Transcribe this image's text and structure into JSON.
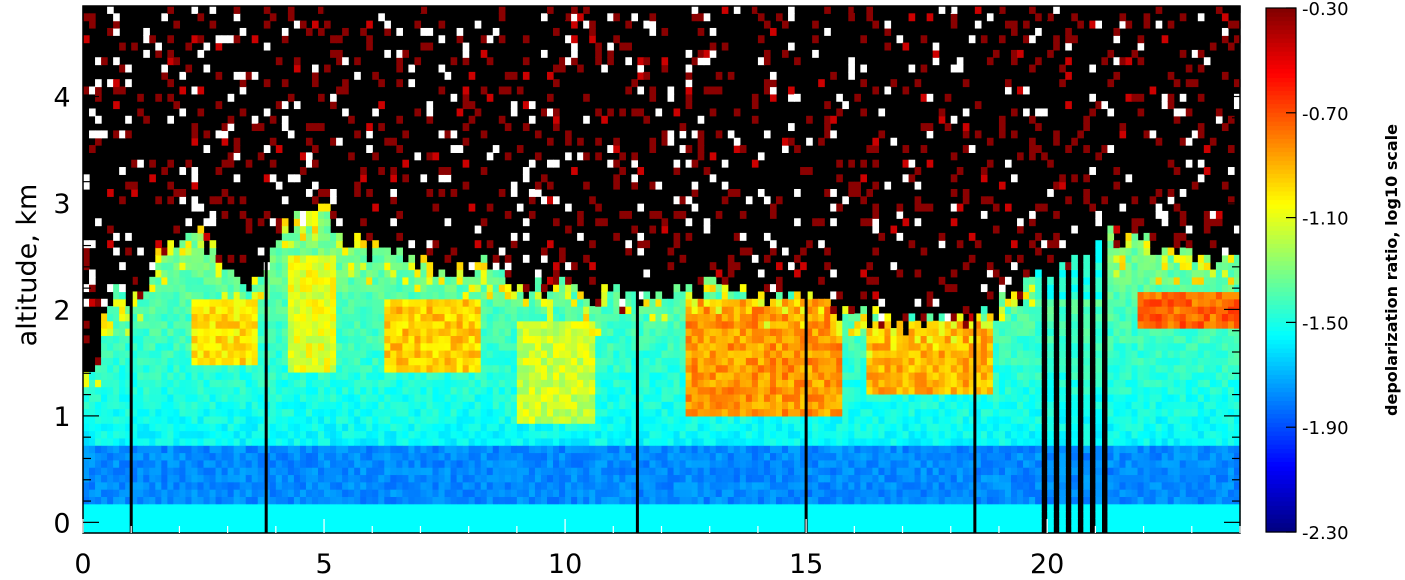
{
  "chart_data": {
    "type": "heatmap",
    "title": "",
    "xlabel": "",
    "ylabel": "altitude, km",
    "xlim": [
      0,
      24
    ],
    "ylim": [
      -0.1,
      4.85
    ],
    "x_ticks": [
      0,
      5,
      10,
      15,
      20
    ],
    "x_minor_step": 1,
    "y_ticks": [
      0,
      1,
      2,
      3,
      4
    ],
    "y_minor_step": 0.2,
    "colorbar": {
      "label": "depolarization ratio, log10 scale",
      "range": [
        -2.3,
        -0.3
      ],
      "ticks": [
        "-0.30",
        "-0.70",
        "-1.10",
        "-1.50",
        "-1.90",
        "-2.30"
      ],
      "colormap": "rainbow (blue-cyan-green-yellow-orange-red)"
    },
    "background_color": "#000000",
    "layer_top_km": [
      {
        "x": 0.2,
        "top": 1.4
      },
      {
        "x": 0.6,
        "top": 2.2
      },
      {
        "x": 1.2,
        "top": 2.1
      },
      {
        "x": 1.6,
        "top": 2.5
      },
      {
        "x": 2.2,
        "top": 2.8
      },
      {
        "x": 2.8,
        "top": 2.5
      },
      {
        "x": 3.5,
        "top": 2.2
      },
      {
        "x": 4.3,
        "top": 2.8
      },
      {
        "x": 4.9,
        "top": 3.0
      },
      {
        "x": 5.6,
        "top": 2.6
      },
      {
        "x": 6.5,
        "top": 2.5
      },
      {
        "x": 7.4,
        "top": 2.4
      },
      {
        "x": 8.3,
        "top": 2.4
      },
      {
        "x": 9.2,
        "top": 2.2
      },
      {
        "x": 10.2,
        "top": 2.2
      },
      {
        "x": 11.2,
        "top": 2.1
      },
      {
        "x": 12.3,
        "top": 2.2
      },
      {
        "x": 13.3,
        "top": 2.2
      },
      {
        "x": 14.3,
        "top": 2.1
      },
      {
        "x": 15.4,
        "top": 2.0
      },
      {
        "x": 16.4,
        "top": 1.9
      },
      {
        "x": 17.3,
        "top": 1.9
      },
      {
        "x": 18.2,
        "top": 1.9
      },
      {
        "x": 19.0,
        "top": 2.0
      },
      {
        "x": 19.6,
        "top": 2.2
      },
      {
        "x": 20.5,
        "top": 2.5
      },
      {
        "x": 21.3,
        "top": 2.7
      },
      {
        "x": 22.3,
        "top": 2.6
      },
      {
        "x": 23.5,
        "top": 2.5
      }
    ],
    "enhanced_depol_regions": [
      {
        "x": [
          2.3,
          3.6
        ],
        "alt": [
          1.5,
          2.1
        ],
        "value": -1.0
      },
      {
        "x": [
          4.3,
          5.2
        ],
        "alt": [
          1.4,
          2.5
        ],
        "value": -1.1
      },
      {
        "x": [
          6.2,
          8.3
        ],
        "alt": [
          1.4,
          2.1
        ],
        "value": -0.95
      },
      {
        "x": [
          9.0,
          10.6
        ],
        "alt": [
          0.9,
          1.9
        ],
        "value": -1.15
      },
      {
        "x": [
          12.5,
          15.8
        ],
        "alt": [
          1.0,
          2.1
        ],
        "value": -0.85
      },
      {
        "x": [
          16.2,
          18.9
        ],
        "alt": [
          1.2,
          1.9
        ],
        "value": -0.9
      },
      {
        "x": [
          21.9,
          24.0
        ],
        "alt": [
          1.8,
          2.2
        ],
        "value": -0.75
      }
    ],
    "gaps_x": [
      1.0,
      3.8,
      11.5,
      15.0,
      18.5
    ],
    "blocked_interval_x": [
      19.8,
      21.2
    ]
  }
}
